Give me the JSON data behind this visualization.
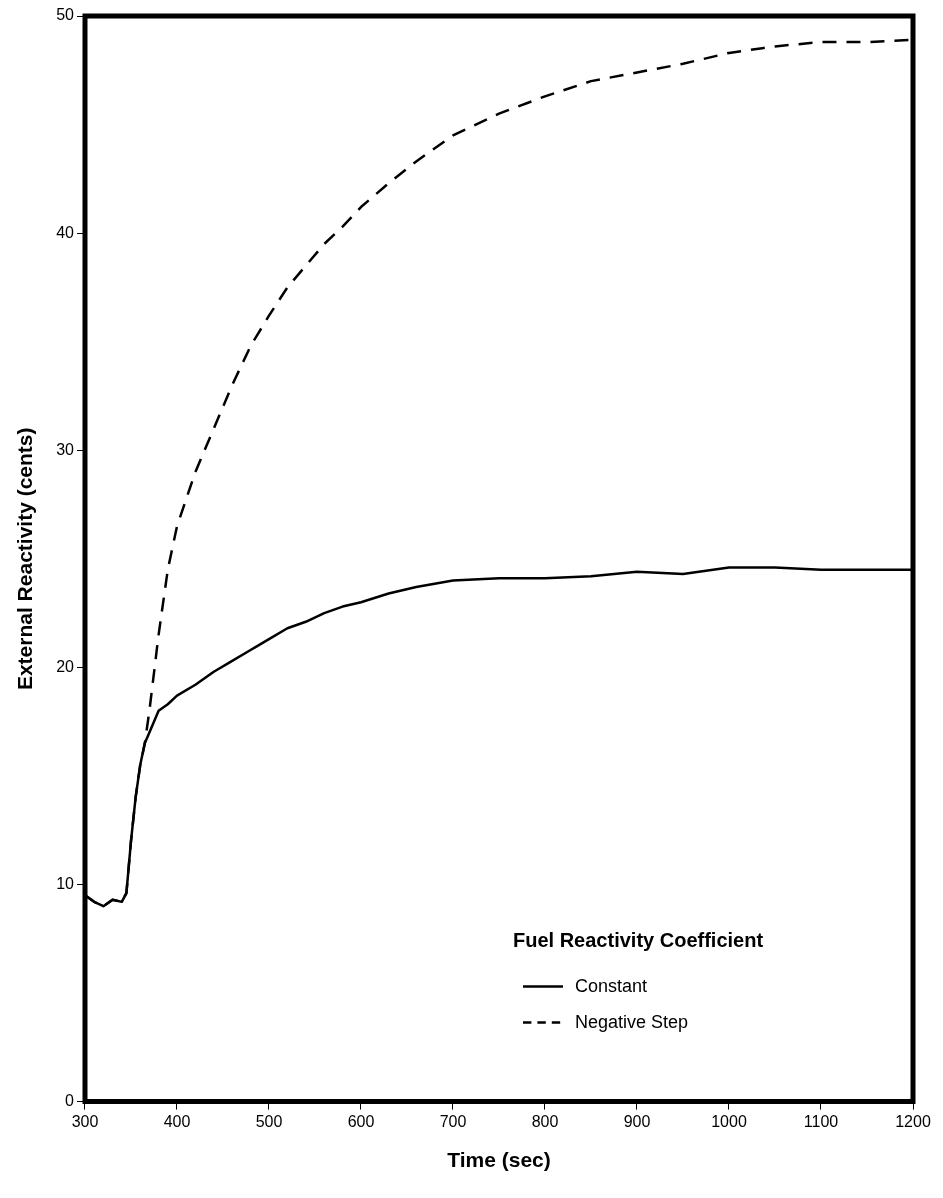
{
  "chart_data": {
    "type": "line",
    "xlabel": "Time (sec)",
    "ylabel": "External Reactivity (cents)",
    "legend_title": "Fuel Reactivity Coefficient",
    "legend": "bottom right",
    "grid": false,
    "marker": "none",
    "x": [
      300,
      310,
      320,
      330,
      340,
      345,
      350,
      355,
      360,
      365,
      370,
      380,
      390,
      400,
      420,
      440,
      460,
      480,
      500,
      520,
      540,
      560,
      580,
      600,
      630,
      660,
      700,
      750,
      800,
      850,
      900,
      950,
      1000,
      1050,
      1100,
      1150,
      1200
    ],
    "series": [
      {
        "name": "Constant",
        "color": "#000000",
        "line_style": "solid",
        "values": [
          9.5,
          9.2,
          9.0,
          9.3,
          9.2,
          9.6,
          12,
          14,
          15.5,
          16.5,
          17,
          18,
          18.3,
          18.7,
          19.2,
          19.8,
          20.3,
          20.8,
          21.3,
          21.8,
          22.1,
          22.5,
          22.8,
          23.0,
          23.4,
          23.7,
          24.0,
          24.1,
          24.1,
          24.2,
          24.4,
          24.3,
          24.6,
          24.6,
          24.5,
          24.5,
          24.5
        ]
      },
      {
        "name": "Negative Step",
        "color": "#000000",
        "line_style": "dashed",
        "values": [
          9.5,
          9.2,
          9.0,
          9.3,
          9.2,
          9.6,
          12,
          14,
          15.5,
          16.5,
          18,
          21.5,
          24.5,
          26.5,
          29,
          31,
          33,
          34.8,
          36.2,
          37.5,
          38.5,
          39.5,
          40.3,
          41.2,
          42.3,
          43.3,
          44.5,
          45.5,
          46.3,
          47,
          47.4,
          47.8,
          48.3,
          48.6,
          48.8,
          48.8,
          48.9
        ]
      }
    ],
    "xlim": [
      300,
      1200
    ],
    "xticks": [
      300,
      400,
      500,
      600,
      700,
      800,
      900,
      1000,
      1100,
      1200
    ],
    "ylim": [
      0,
      50
    ],
    "yticks": [
      0,
      10,
      20,
      30,
      40,
      50
    ]
  }
}
